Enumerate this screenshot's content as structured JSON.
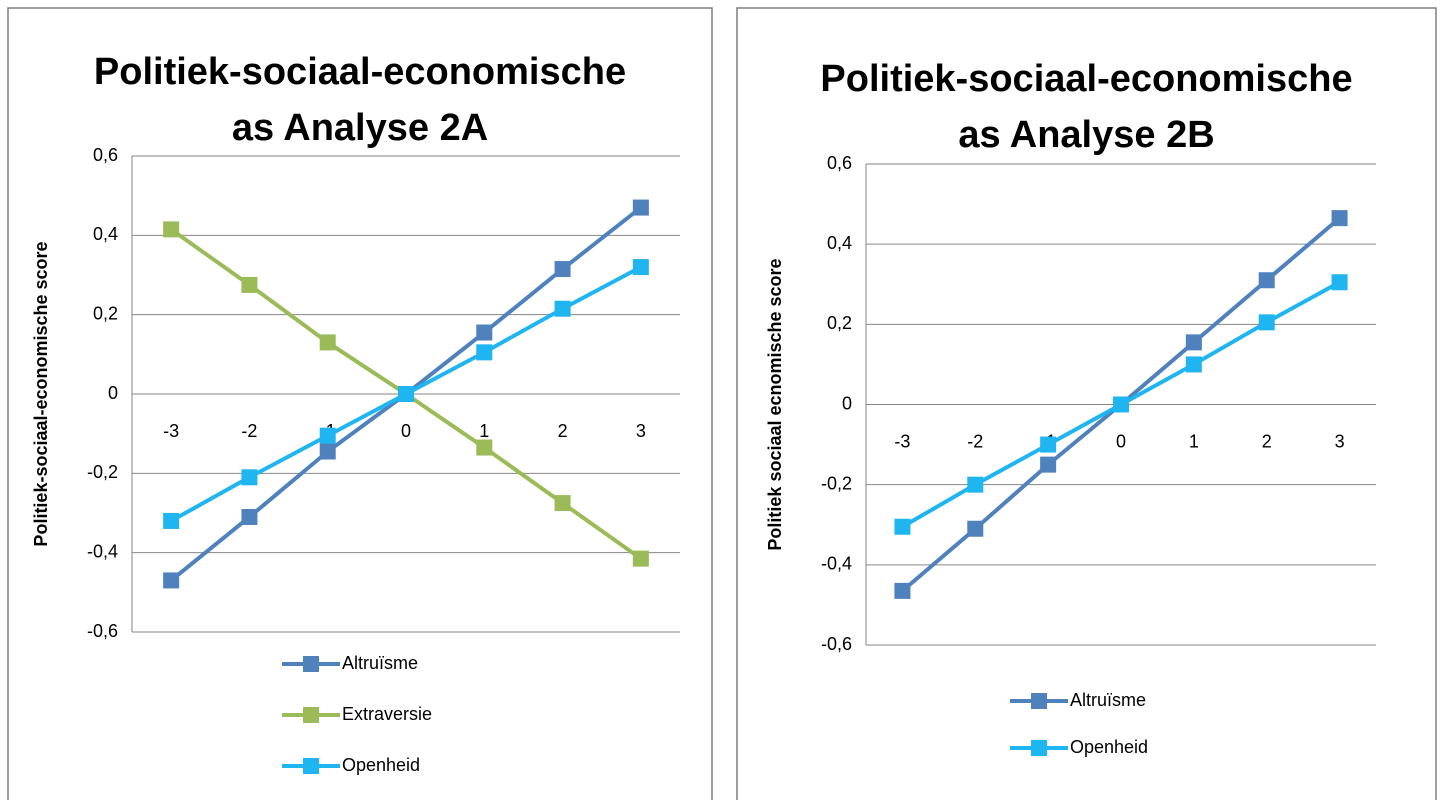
{
  "chart_data": [
    {
      "type": "line",
      "title": "Politiek-sociaal-economische\nas Analyse 2A",
      "y_label": "Politiek-sociaal-economische score",
      "categories": [
        "-3",
        "-2",
        "-1",
        "0",
        "1",
        "2",
        "3"
      ],
      "series": [
        {
          "name": "Altruïsme",
          "color": "#4f81bd",
          "values": [
            -0.47,
            -0.31,
            -0.145,
            0,
            0.155,
            0.315,
            0.47
          ]
        },
        {
          "name": "Extraversie",
          "color": "#9bbb59",
          "values": [
            0.415,
            0.275,
            0.13,
            0,
            -0.135,
            -0.275,
            -0.415
          ]
        },
        {
          "name": "Openheid",
          "color": "#1fb5f0",
          "values": [
            -0.32,
            -0.21,
            -0.105,
            0,
            0.105,
            0.215,
            0.32
          ]
        }
      ],
      "ylim": [
        -0.6,
        0.6
      ],
      "yticks": [
        {
          "value": -0.6,
          "label": "-0,6"
        },
        {
          "value": -0.4,
          "label": "-0,4"
        },
        {
          "value": -0.2,
          "label": "-0,2"
        },
        0,
        {
          "value": 0.2,
          "label": "0,2"
        },
        {
          "value": 0.4,
          "label": "0,4"
        },
        {
          "value": 0.6,
          "label": "0,6"
        }
      ],
      "grid": true,
      "legend": "bottom"
    },
    {
      "type": "line",
      "title": "Politiek-sociaal-economische\nas Analyse 2B",
      "y_label": "Politiek sociaal ecnomische score",
      "categories": [
        "-3",
        "-2",
        "-1",
        "0",
        "1",
        "2",
        "3"
      ],
      "series": [
        {
          "name": "Altruïsme",
          "color": "#4f81bd",
          "values": [
            -0.465,
            -0.31,
            -0.15,
            0,
            0.155,
            0.31,
            0.465
          ]
        },
        {
          "name": "Openheid",
          "color": "#1fb5f0",
          "values": [
            -0.305,
            -0.2,
            -0.1,
            0,
            0.1,
            0.205,
            0.305
          ]
        }
      ],
      "ylim": [
        -0.6,
        0.6
      ],
      "yticks": [
        {
          "value": -0.6,
          "label": "-0,6"
        },
        {
          "value": -0.4,
          "label": "-0,4"
        },
        {
          "value": -0.2,
          "label": "-0,2"
        },
        0,
        {
          "value": 0.2,
          "label": "0,2"
        },
        {
          "value": 0.4,
          "label": "0,4"
        },
        {
          "value": 0.6,
          "label": "0,6"
        }
      ],
      "grid": true,
      "legend": "bottom"
    }
  ]
}
